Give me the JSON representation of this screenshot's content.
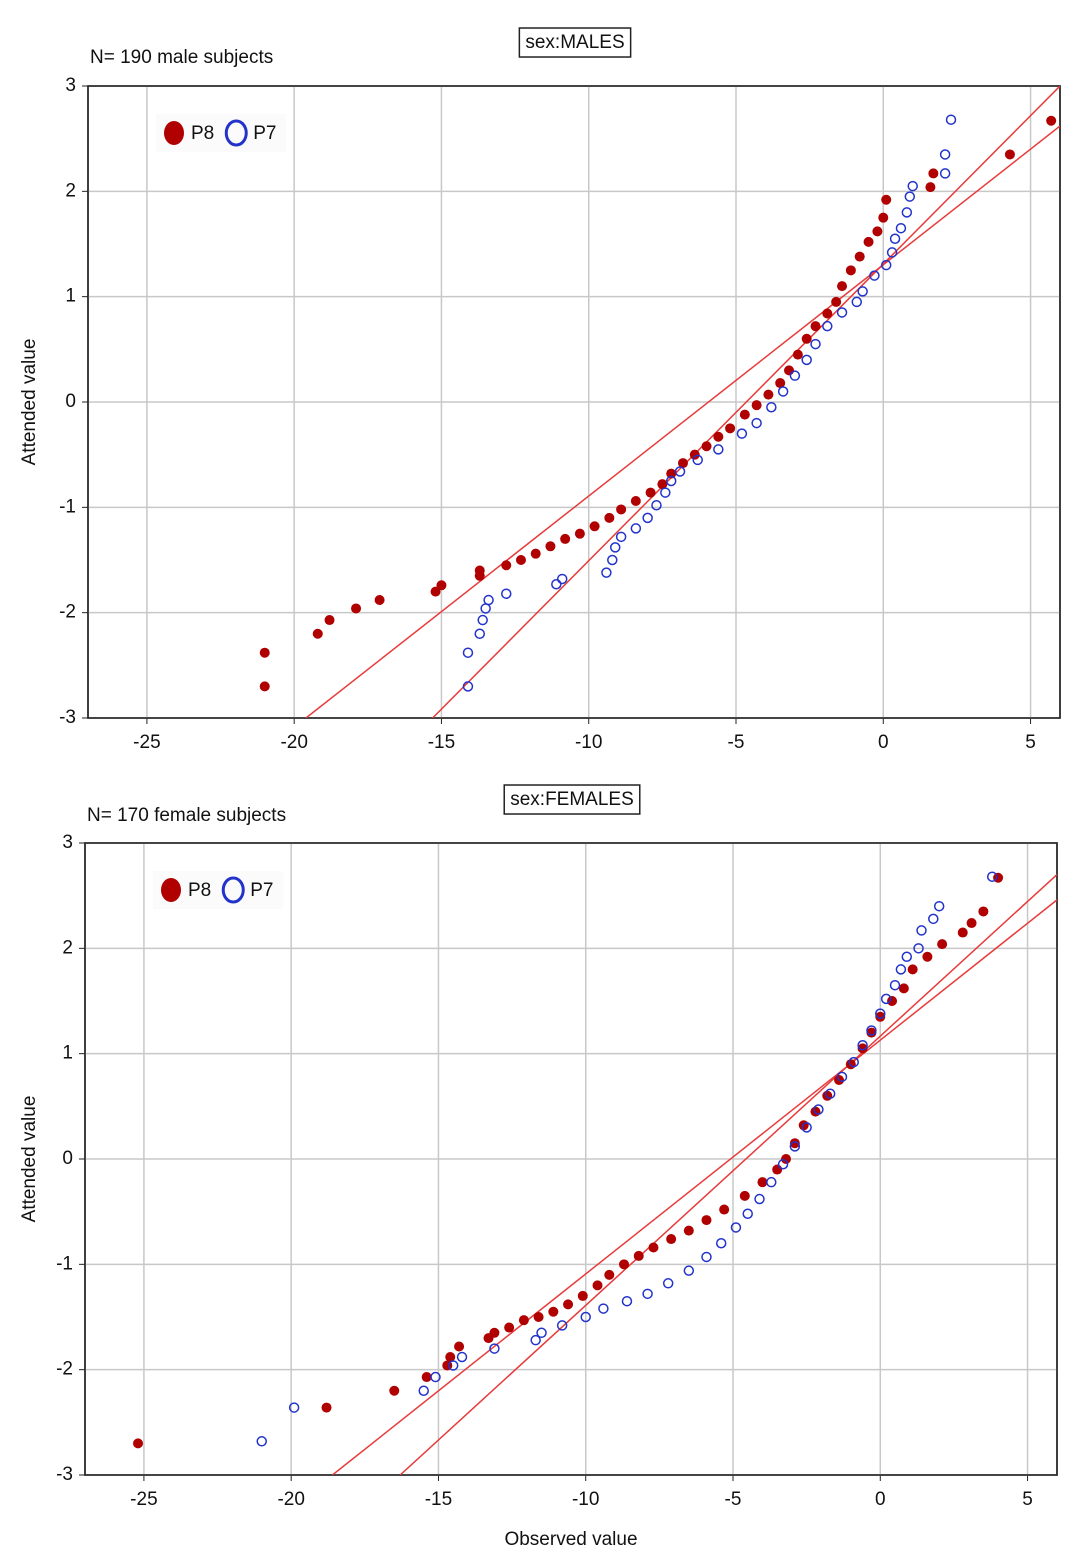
{
  "chart_data": [
    {
      "type": "scatter",
      "title": "sex:MALES",
      "subtitle": "N= 190 male subjects",
      "y_label": "Attended value",
      "xlim": [
        -27,
        6
      ],
      "ylim": [
        -3,
        3
      ],
      "xticks": [
        -25,
        -20,
        -15,
        -10,
        -5,
        0,
        5
      ],
      "yticks": [
        -3,
        -2,
        -1,
        0,
        1,
        2,
        3
      ],
      "grid": true,
      "legend": "upper-left",
      "series": [
        {
          "name": "P8",
          "color": "#b00000",
          "marker": "filled",
          "x": [
            -21,
            -21,
            -19.2,
            -18.8,
            -17.9,
            -17.1,
            -15.2,
            -15,
            -13.7,
            -13.7,
            -12.8,
            -12.3,
            -11.8,
            -11.3,
            -10.8,
            -10.3,
            -9.8,
            -9.3,
            -8.9,
            -8.4,
            -7.9,
            -7.5,
            -7.2,
            -6.8,
            -6.4,
            -6,
            -5.6,
            -5.2,
            -4.7,
            -4.3,
            -3.9,
            -3.5,
            -3.2,
            -2.9,
            -2.6,
            -2.3,
            -1.9,
            -1.6,
            -1.4,
            -1.1,
            -0.8,
            -0.5,
            -0.2,
            0,
            0.1,
            1.6,
            1.7,
            4.3,
            5.7
          ],
          "y": [
            -2.7,
            -2.38,
            -2.2,
            -2.07,
            -1.96,
            -1.88,
            -1.8,
            -1.74,
            -1.65,
            -1.6,
            -1.55,
            -1.5,
            -1.44,
            -1.37,
            -1.3,
            -1.25,
            -1.18,
            -1.1,
            -1.02,
            -0.94,
            -0.86,
            -0.78,
            -0.68,
            -0.58,
            -0.5,
            -0.42,
            -0.33,
            -0.25,
            -0.12,
            -0.03,
            0.07,
            0.18,
            0.3,
            0.45,
            0.6,
            0.72,
            0.84,
            0.95,
            1.1,
            1.25,
            1.38,
            1.52,
            1.62,
            1.75,
            1.92,
            2.04,
            2.17,
            2.35,
            2.67
          ],
          "fit_line": {
            "color": "#e83a3a",
            "x": [
              -19.6,
              6
            ],
            "y": [
              -3,
              2.62
            ]
          }
        },
        {
          "name": "P7",
          "color": "#2233cc",
          "marker": "hollow",
          "x": [
            -14.1,
            -14.1,
            -13.7,
            -13.6,
            -13.5,
            -13.4,
            -12.8,
            -11.1,
            -10.9,
            -9.4,
            -9.2,
            -9.1,
            -8.9,
            -8.4,
            -8,
            -7.7,
            -7.4,
            -7.2,
            -6.9,
            -6.3,
            -5.6,
            -4.8,
            -4.3,
            -3.8,
            -3.4,
            -3,
            -2.6,
            -2.3,
            -1.9,
            -1.4,
            -0.9,
            -0.7,
            -0.3,
            0.1,
            0.3,
            0.4,
            0.6,
            0.8,
            0.9,
            1,
            2.1,
            2.1,
            2.3
          ],
          "y": [
            -2.7,
            -2.38,
            -2.2,
            -2.07,
            -1.96,
            -1.88,
            -1.82,
            -1.73,
            -1.68,
            -1.62,
            -1.5,
            -1.38,
            -1.28,
            -1.2,
            -1.1,
            -0.98,
            -0.86,
            -0.75,
            -0.66,
            -0.55,
            -0.45,
            -0.3,
            -0.2,
            -0.05,
            0.1,
            0.25,
            0.4,
            0.55,
            0.72,
            0.85,
            0.95,
            1.05,
            1.2,
            1.3,
            1.42,
            1.55,
            1.65,
            1.8,
            1.95,
            2.05,
            2.17,
            2.35,
            2.68
          ],
          "fit_line": {
            "color": "#e83a3a",
            "x": [
              -15.3,
              6
            ],
            "y": [
              -3,
              3
            ]
          }
        }
      ]
    },
    {
      "type": "scatter",
      "title": "sex:FEMALES",
      "subtitle": "N= 170 female subjects",
      "y_label": "Attended value",
      "x_label": "Observed value",
      "xlim": [
        -27,
        6
      ],
      "ylim": [
        -3,
        3
      ],
      "xticks": [
        -25,
        -20,
        -15,
        -10,
        -5,
        0,
        5
      ],
      "yticks": [
        -3,
        -2,
        -1,
        0,
        1,
        2,
        3
      ],
      "grid": true,
      "legend": "upper-left",
      "series": [
        {
          "name": "P8",
          "color": "#b00000",
          "marker": "filled",
          "x": [
            -25.2,
            -18.8,
            -16.5,
            -15.4,
            -14.7,
            -14.6,
            -14.3,
            -13.3,
            -13.1,
            -12.6,
            -12.1,
            -11.6,
            -11.1,
            -10.6,
            -10.1,
            -9.6,
            -9.2,
            -8.7,
            -8.2,
            -7.7,
            -7.1,
            -6.5,
            -5.9,
            -5.3,
            -4.6,
            -4,
            -3.5,
            -3.2,
            -2.9,
            -2.6,
            -2.2,
            -1.8,
            -1.4,
            -1,
            -0.6,
            -0.3,
            0,
            0.4,
            0.8,
            1.1,
            1.6,
            2.1,
            2.8,
            3.1,
            3.5,
            4
          ],
          "y": [
            -2.7,
            -2.36,
            -2.2,
            -2.07,
            -1.96,
            -1.88,
            -1.78,
            -1.7,
            -1.65,
            -1.6,
            -1.53,
            -1.5,
            -1.45,
            -1.38,
            -1.3,
            -1.2,
            -1.1,
            -1,
            -0.92,
            -0.84,
            -0.76,
            -0.68,
            -0.58,
            -0.48,
            -0.35,
            -0.22,
            -0.1,
            0,
            0.15,
            0.32,
            0.45,
            0.6,
            0.75,
            0.9,
            1.05,
            1.2,
            1.35,
            1.5,
            1.62,
            1.8,
            1.92,
            2.04,
            2.15,
            2.24,
            2.35,
            2.67
          ],
          "fit_line": {
            "color": "#e83a3a",
            "x": [
              -18.6,
              6
            ],
            "y": [
              -3,
              2.46
            ]
          }
        },
        {
          "name": "P7",
          "color": "#2233cc",
          "marker": "hollow",
          "x": [
            -21,
            -19.9,
            -15.5,
            -15.1,
            -14.5,
            -14.2,
            -13.1,
            -11.7,
            -11.5,
            -10.8,
            -10,
            -9.4,
            -8.6,
            -7.9,
            -7.2,
            -6.5,
            -5.9,
            -5.4,
            -4.9,
            -4.5,
            -4.1,
            -3.7,
            -3.3,
            -2.9,
            -2.5,
            -2.1,
            -1.7,
            -1.3,
            -0.9,
            -0.6,
            -0.3,
            0,
            0.2,
            0.5,
            0.7,
            0.9,
            1.3,
            1.4,
            1.8,
            2,
            3.8
          ],
          "y": [
            -2.68,
            -2.36,
            -2.2,
            -2.07,
            -1.96,
            -1.88,
            -1.8,
            -1.72,
            -1.65,
            -1.58,
            -1.5,
            -1.42,
            -1.35,
            -1.28,
            -1.18,
            -1.06,
            -0.93,
            -0.8,
            -0.65,
            -0.52,
            -0.38,
            -0.22,
            -0.05,
            0.12,
            0.3,
            0.47,
            0.62,
            0.78,
            0.92,
            1.08,
            1.22,
            1.38,
            1.52,
            1.65,
            1.8,
            1.92,
            2,
            2.17,
            2.28,
            2.4,
            2.68
          ],
          "fit_line": {
            "color": "#e83a3a",
            "x": [
              -16.3,
              6
            ],
            "y": [
              -3,
              2.7
            ]
          }
        }
      ]
    }
  ]
}
